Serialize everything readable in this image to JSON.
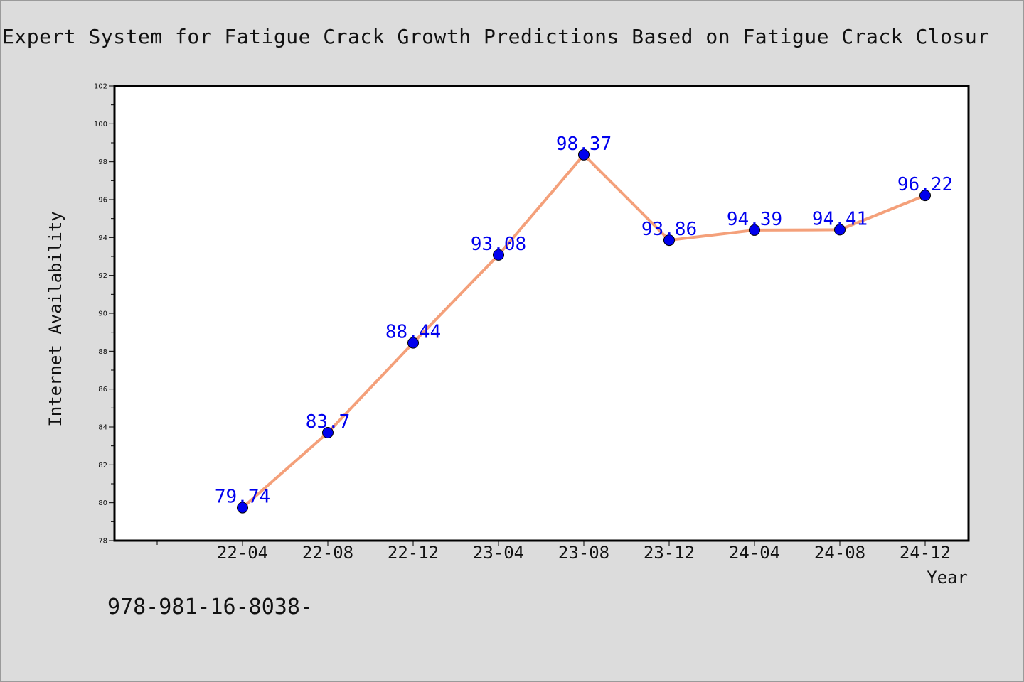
{
  "chart_data": {
    "type": "line",
    "title": "Expert System for Fatigue Crack Growth Predictions Based on Fatigue Crack Closur",
    "xlabel": "Year",
    "ylabel": "Internet Availability",
    "categories": [
      "22-04",
      "22-08",
      "22-12",
      "23-04",
      "23-08",
      "23-12",
      "24-04",
      "24-08",
      "24-12"
    ],
    "series": [
      {
        "name": "",
        "values": [
          79.74,
          83.7,
          88.44,
          93.08,
          98.37,
          93.86,
          94.39,
          94.41,
          96.22
        ],
        "value_labels": [
          "79.74",
          "83.7",
          "88.44",
          "93.08",
          "98.37",
          "93.86",
          "94.39",
          "94.41",
          "96.22"
        ],
        "line_color": "#f4a07a",
        "marker_color": "#0000ee"
      }
    ],
    "ylim": [
      78,
      102
    ],
    "yticks": [
      78,
      80,
      82,
      84,
      86,
      88,
      90,
      92,
      94,
      96,
      98,
      100,
      102
    ],
    "grid": false,
    "legend": "none"
  },
  "footnote": "978-981-16-8038-"
}
